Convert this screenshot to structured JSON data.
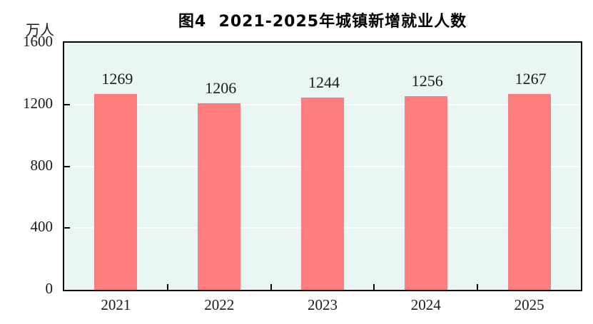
{
  "title": "图4  2021-2025年城镇新增就业人数",
  "unit_label": "万人",
  "chart_data": {
    "type": "bar",
    "title": "图4  2021-2025年城镇新增就业人数",
    "categories": [
      "2021",
      "2022",
      "2023",
      "2024",
      "2025"
    ],
    "values": [
      1269,
      1206,
      1244,
      1256,
      1267
    ],
    "xlabel": "",
    "ylabel": "万人",
    "ylim": [
      0,
      1600
    ],
    "yticks": [
      0,
      400,
      800,
      1200,
      1600
    ],
    "legend": "none",
    "grid": "horizontal gridlines at 400/800/1200",
    "bar_color": "#FC7E7E",
    "plot_background": "#E9F6F4",
    "gridline_color": "#FFFFFF",
    "axis_color": "#000000"
  }
}
